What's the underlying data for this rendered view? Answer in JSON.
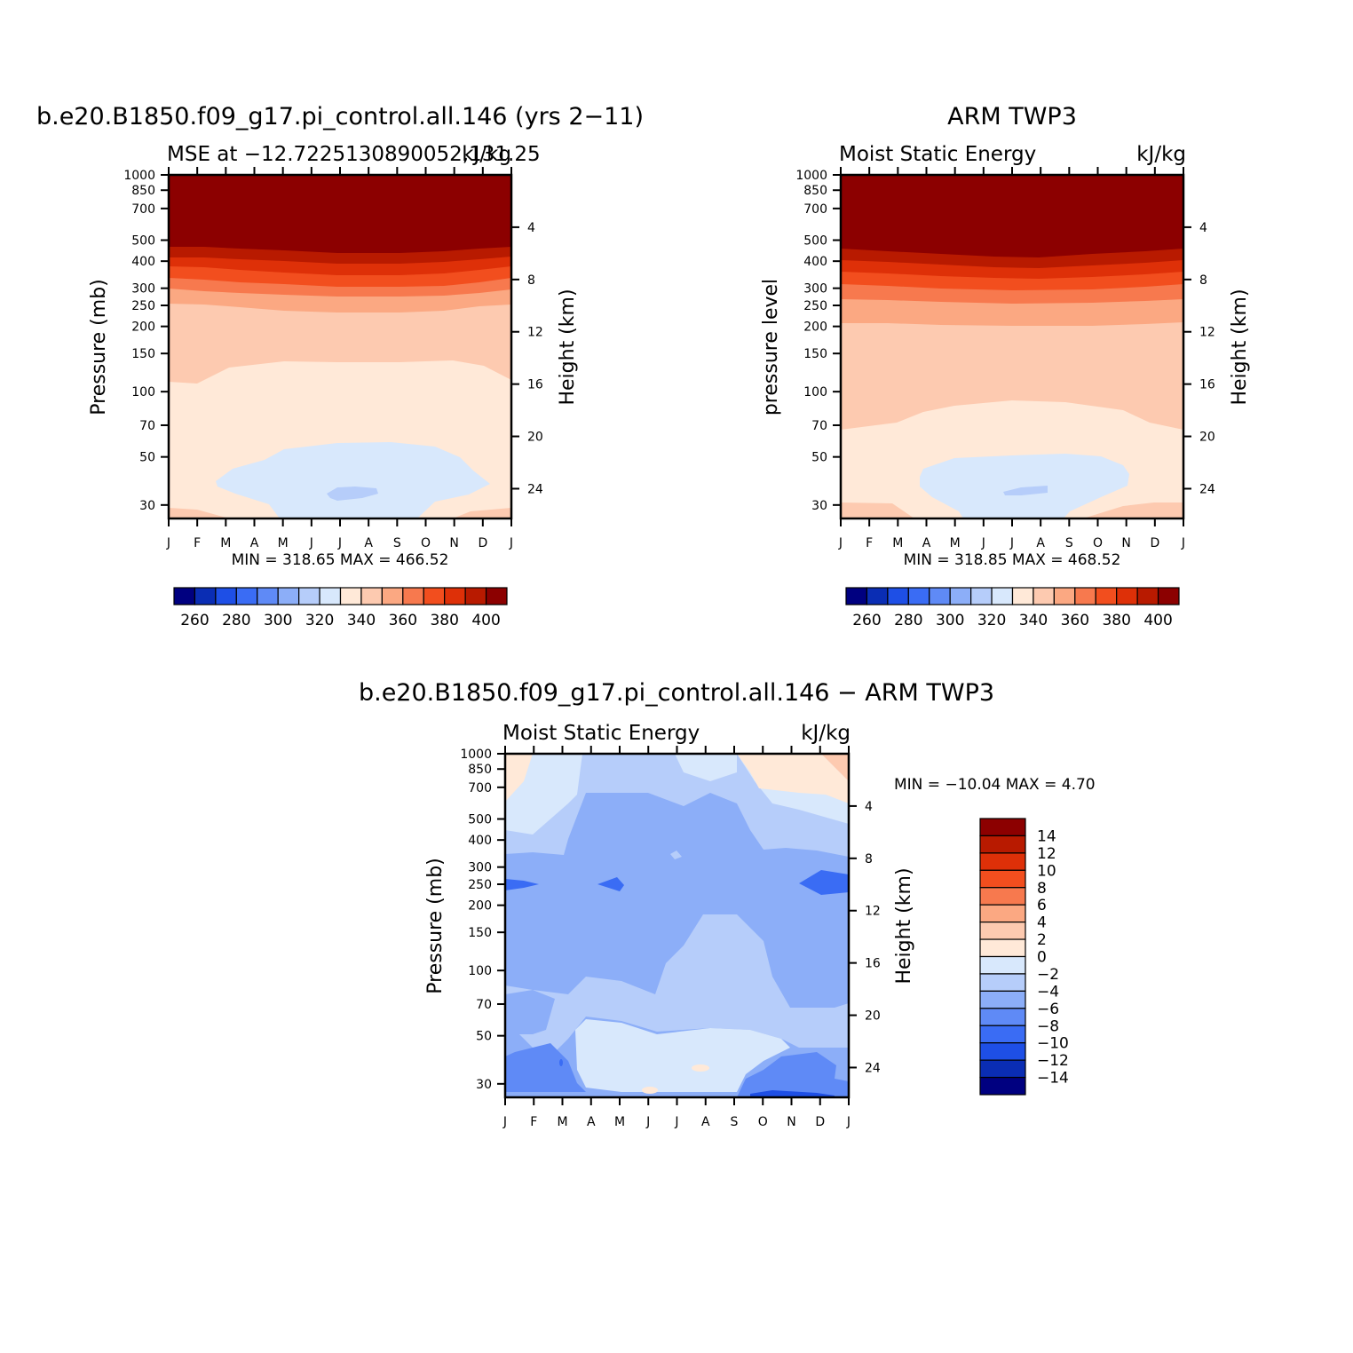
{
  "panels": [
    {
      "title": "b.e20.B1850.f09_g17.pi_control.all.146 (yrs 2−11)",
      "subtitle_left": "MSE at −12.7225130890052,131.25",
      "subtitle_right": "kJ/kg",
      "ylabel": "Pressure (mb)",
      "y2label": "Height (km)",
      "stats": "MIN = 318.65 MAX = 466.52"
    },
    {
      "title": "ARM TWP3",
      "subtitle_left": "Moist Static Energy",
      "subtitle_right": "kJ/kg",
      "ylabel": "pressure level",
      "y2label": "Height (km)",
      "stats": "MIN = 318.85 MAX = 468.52"
    },
    {
      "title": "b.e20.B1850.f09_g17.pi_control.all.146 − ARM TWP3",
      "subtitle_left": "Moist Static Energy",
      "subtitle_right": "kJ/kg",
      "ylabel": "Pressure (mb)",
      "y2label": "Height (km)",
      "stats": "MIN = −10.04 MAX =     4.70"
    }
  ],
  "chart_data": [
    {
      "type": "heatmap",
      "title": "b.e20.B1850.f09_g17.pi_control.all.146 (yrs 2−11)",
      "x_ticks": [
        "J",
        "F",
        "M",
        "A",
        "M",
        "J",
        "J",
        "A",
        "S",
        "O",
        "N",
        "D",
        "J"
      ],
      "y_ticks": [
        30,
        50,
        70,
        100,
        150,
        200,
        250,
        300,
        400,
        500,
        700,
        850,
        1000
      ],
      "y_scale": "log",
      "y_inverted": true,
      "y_range": [
        1000,
        26
      ],
      "y2_ticks": [
        4,
        8,
        12,
        16,
        20,
        24
      ],
      "colorbar": {
        "levels": [
          250,
          260,
          270,
          280,
          290,
          300,
          310,
          320,
          330,
          340,
          350,
          360,
          370,
          380,
          390,
          400,
          410
        ],
        "labels": [
          "260",
          "280",
          "300",
          "320",
          "340",
          "360",
          "380",
          "400"
        ],
        "colors": [
          "#000080",
          "#0a2db4",
          "#1e4fe6",
          "#3a6cf4",
          "#5f8af6",
          "#8caef8",
          "#b6cdfa",
          "#d8e8fc",
          "#ffe9d8",
          "#fdcab0",
          "#fba882",
          "#f7794e",
          "#f24e1e",
          "#de3008",
          "#b81a00",
          "#8c0000"
        ]
      },
      "contours": [
        {
          "value": 320,
          "color": "#d8e8fc"
        },
        {
          "value": 330,
          "color": "#ffe9d8"
        },
        {
          "value": 340,
          "color": "#fdcab0"
        },
        {
          "value": 350,
          "color": "#fba882"
        },
        {
          "value": 360,
          "color": "#f7794e"
        },
        {
          "value": 370,
          "color": "#f24e1e"
        },
        {
          "value": 380,
          "color": "#de3008"
        },
        {
          "value": 390,
          "color": "#b81a00"
        },
        {
          "value": 400,
          "color": "#8c0000"
        }
      ],
      "min": 318.65,
      "max": 466.52
    },
    {
      "type": "heatmap",
      "title": "ARM TWP3",
      "x_ticks": [
        "J",
        "F",
        "M",
        "A",
        "M",
        "J",
        "J",
        "A",
        "S",
        "O",
        "N",
        "D",
        "J"
      ],
      "y_ticks": [
        30,
        50,
        70,
        100,
        150,
        200,
        250,
        300,
        400,
        500,
        700,
        850,
        1000
      ],
      "y_scale": "log",
      "y_inverted": true,
      "y_range": [
        1000,
        26
      ],
      "y2_ticks": [
        4,
        8,
        12,
        16,
        20,
        24
      ],
      "colorbar": {
        "levels": [
          250,
          260,
          270,
          280,
          290,
          300,
          310,
          320,
          330,
          340,
          350,
          360,
          370,
          380,
          390,
          400,
          410
        ],
        "labels": [
          "260",
          "280",
          "300",
          "320",
          "340",
          "360",
          "380",
          "400"
        ],
        "colors": [
          "#000080",
          "#0a2db4",
          "#1e4fe6",
          "#3a6cf4",
          "#5f8af6",
          "#8caef8",
          "#b6cdfa",
          "#d8e8fc",
          "#ffe9d8",
          "#fdcab0",
          "#fba882",
          "#f7794e",
          "#f24e1e",
          "#de3008",
          "#b81a00",
          "#8c0000"
        ]
      },
      "min": 318.85,
      "max": 468.52
    },
    {
      "type": "heatmap",
      "title": "b.e20.B1850.f09_g17.pi_control.all.146 − ARM TWP3",
      "x_ticks": [
        "J",
        "F",
        "M",
        "A",
        "M",
        "J",
        "J",
        "A",
        "S",
        "O",
        "N",
        "D",
        "J"
      ],
      "y_ticks": [
        30,
        50,
        70,
        100,
        150,
        200,
        250,
        300,
        400,
        500,
        700,
        850,
        1000
      ],
      "y_scale": "log",
      "y_inverted": true,
      "y_range": [
        1000,
        26
      ],
      "y2_ticks": [
        4,
        8,
        12,
        16,
        20,
        24
      ],
      "colorbar": {
        "levels": [
          -16,
          -14,
          -12,
          -10,
          -8,
          -6,
          -4,
          -2,
          0,
          2,
          4,
          6,
          8,
          10,
          12,
          14,
          16
        ],
        "labels": [
          "14",
          "12",
          "10",
          "8",
          "6",
          "4",
          "2",
          "0",
          "−2",
          "−4",
          "−6",
          "−8",
          "−10",
          "−12",
          "−14"
        ],
        "colors": [
          "#000080",
          "#0a2db4",
          "#1e4fe6",
          "#3a6cf4",
          "#5f8af6",
          "#8caef8",
          "#b6cdfa",
          "#d8e8fc",
          "#ffe9d8",
          "#fdcab0",
          "#fba882",
          "#f7794e",
          "#f24e1e",
          "#de3008",
          "#b81a00",
          "#8c0000"
        ]
      },
      "min": -10.04,
      "max": 4.7
    }
  ]
}
